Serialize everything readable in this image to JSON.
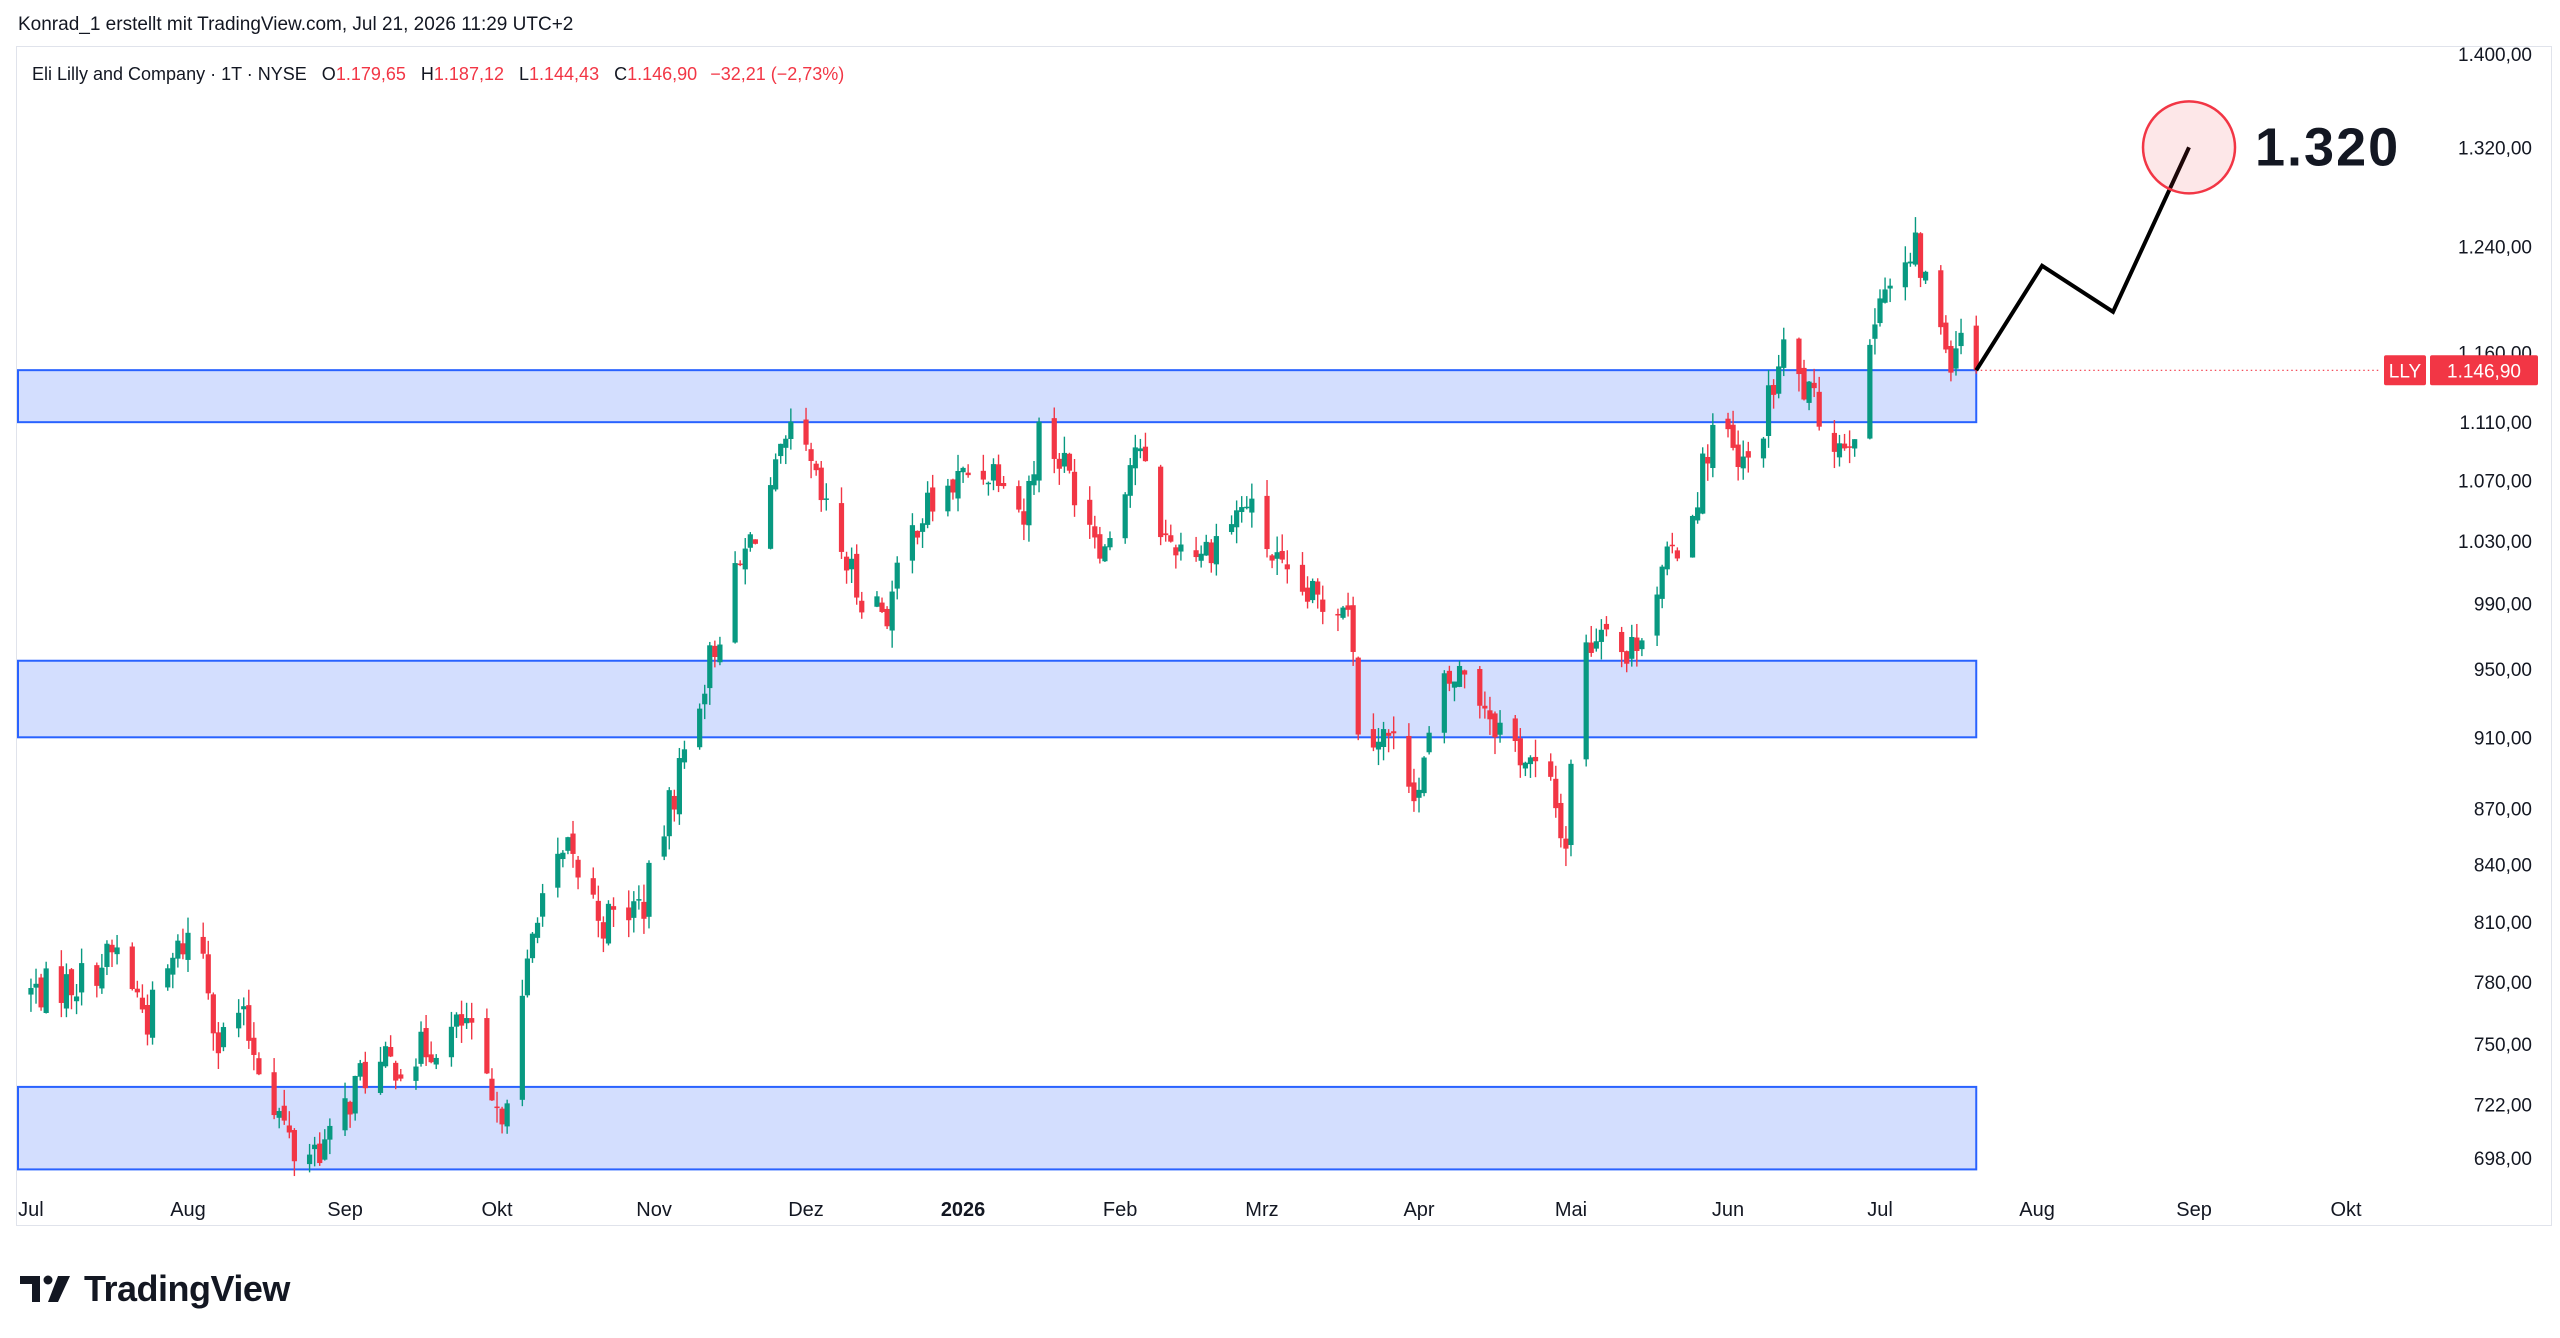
{
  "header": {
    "credit": "Konrad_1 erstellt mit TradingView.com, Jul 21, 2026 11:29 UTC+2"
  },
  "symbol": {
    "name": "Eli Lilly and Company · 1T · NYSE",
    "open_label": "O",
    "open": "1.179,65",
    "high_label": "H",
    "high": "1.187,12",
    "low_label": "L",
    "low": "1.144,43",
    "close_label": "C",
    "close": "1.146,90",
    "change": "−32,21 (−2,73%)"
  },
  "branding": {
    "logo_text": "TradingView",
    "logo_icon": "tradingview-logo-icon"
  },
  "colors": {
    "up": "#089981",
    "down": "#f23645",
    "zone_fill": "#d3defe",
    "zone_border": "#2962ff",
    "target_circle": "#f23645"
  },
  "chart_data": {
    "type": "candlestick",
    "ticker": "LLY",
    "last_price_label": "1.146,90",
    "last_price": 1146.9,
    "y_axis": {
      "scale": "log",
      "ticks": [
        {
          "value": 1400,
          "label": "1.400,00"
        },
        {
          "value": 1320,
          "label": "1.320,00"
        },
        {
          "value": 1240,
          "label": "1.240,00"
        },
        {
          "value": 1160,
          "label": "1.160,00"
        },
        {
          "value": 1110,
          "label": "1.110,00"
        },
        {
          "value": 1070,
          "label": "1.070,00"
        },
        {
          "value": 1030,
          "label": "1.030,00"
        },
        {
          "value": 990,
          "label": "990,00"
        },
        {
          "value": 950,
          "label": "950,00"
        },
        {
          "value": 910,
          "label": "910,00"
        },
        {
          "value": 870,
          "label": "870,00"
        },
        {
          "value": 840,
          "label": "840,00"
        },
        {
          "value": 810,
          "label": "810,00"
        },
        {
          "value": 780,
          "label": "780,00"
        },
        {
          "value": 750,
          "label": "750,00"
        },
        {
          "value": 722,
          "label": "722,00"
        },
        {
          "value": 698,
          "label": "698,00"
        }
      ]
    },
    "x_axis": {
      "labels": [
        {
          "date": "2025-07-01",
          "label": "Jul"
        },
        {
          "date": "2025-08-01",
          "label": "Aug"
        },
        {
          "date": "2025-09-01",
          "label": "Sep"
        },
        {
          "date": "2025-10-01",
          "label": "Okt"
        },
        {
          "date": "2025-11-01",
          "label": "Nov"
        },
        {
          "date": "2025-12-01",
          "label": "Dez"
        },
        {
          "date": "2026-01-01",
          "label": "2026",
          "bold": true
        },
        {
          "date": "2026-02-01",
          "label": "Feb"
        },
        {
          "date": "2026-03-01",
          "label": "Mrz"
        },
        {
          "date": "2026-04-01",
          "label": "Apr"
        },
        {
          "date": "2026-05-01",
          "label": "Mai"
        },
        {
          "date": "2026-06-01",
          "label": "Jun"
        },
        {
          "date": "2026-07-01",
          "label": "Jul"
        },
        {
          "date": "2026-08-01",
          "label": "Aug"
        },
        {
          "date": "2026-09-01",
          "label": "Sep"
        },
        {
          "date": "2026-10-01",
          "label": "Okt"
        }
      ]
    },
    "price_path": [
      {
        "date": "2025-07-01",
        "close": 775
      },
      {
        "date": "2025-07-10",
        "close": 780
      },
      {
        "date": "2025-07-18",
        "close": 795
      },
      {
        "date": "2025-07-24",
        "close": 762
      },
      {
        "date": "2025-07-30",
        "close": 795
      },
      {
        "date": "2025-08-03",
        "close": 810
      },
      {
        "date": "2025-08-07",
        "close": 750
      },
      {
        "date": "2025-08-11",
        "close": 765
      },
      {
        "date": "2025-08-14",
        "close": 748
      },
      {
        "date": "2025-08-22",
        "close": 700
      },
      {
        "date": "2025-08-29",
        "close": 705
      },
      {
        "date": "2025-09-04",
        "close": 735
      },
      {
        "date": "2025-09-15",
        "close": 745
      },
      {
        "date": "2025-09-25",
        "close": 760
      },
      {
        "date": "2025-10-01",
        "close": 712
      },
      {
        "date": "2025-10-05",
        "close": 750
      },
      {
        "date": "2025-10-09",
        "close": 820
      },
      {
        "date": "2025-10-15",
        "close": 845
      },
      {
        "date": "2025-10-22",
        "close": 810
      },
      {
        "date": "2025-10-30",
        "close": 820
      },
      {
        "date": "2025-11-05",
        "close": 880
      },
      {
        "date": "2025-11-10",
        "close": 935
      },
      {
        "date": "2025-11-16",
        "close": 995
      },
      {
        "date": "2025-11-24",
        "close": 1065
      },
      {
        "date": "2025-11-29",
        "close": 1105
      },
      {
        "date": "2025-12-04",
        "close": 1055
      },
      {
        "date": "2025-12-11",
        "close": 1000
      },
      {
        "date": "2025-12-17",
        "close": 985
      },
      {
        "date": "2025-12-23",
        "close": 1045
      },
      {
        "date": "2026-01-02",
        "close": 1075
      },
      {
        "date": "2026-01-09",
        "close": 1080
      },
      {
        "date": "2026-01-13",
        "close": 1045
      },
      {
        "date": "2026-01-16",
        "close": 1105
      },
      {
        "date": "2026-01-21",
        "close": 1080
      },
      {
        "date": "2026-01-29",
        "close": 1025
      },
      {
        "date": "2026-02-04",
        "close": 1095
      },
      {
        "date": "2026-02-10",
        "close": 1030
      },
      {
        "date": "2026-02-18",
        "close": 1025
      },
      {
        "date": "2026-02-26",
        "close": 1055
      },
      {
        "date": "2026-03-06",
        "close": 1000
      },
      {
        "date": "2026-03-13",
        "close": 990
      },
      {
        "date": "2026-03-18",
        "close": 995
      },
      {
        "date": "2026-03-20",
        "close": 920
      },
      {
        "date": "2026-03-26",
        "close": 910
      },
      {
        "date": "2026-04-01",
        "close": 880
      },
      {
        "date": "2026-04-05",
        "close": 935
      },
      {
        "date": "2026-04-10",
        "close": 950
      },
      {
        "date": "2026-04-16",
        "close": 920
      },
      {
        "date": "2026-04-20",
        "close": 905
      },
      {
        "date": "2026-04-27",
        "close": 880
      },
      {
        "date": "2026-04-30",
        "close": 850
      },
      {
        "date": "2026-05-01",
        "close": 900
      },
      {
        "date": "2026-05-03",
        "close": 955
      },
      {
        "date": "2026-05-08",
        "close": 985
      },
      {
        "date": "2026-05-12",
        "close": 955
      },
      {
        "date": "2026-05-18",
        "close": 1000
      },
      {
        "date": "2026-05-25",
        "close": 1050
      },
      {
        "date": "2026-05-30",
        "close": 1120
      },
      {
        "date": "2026-06-03",
        "close": 1075
      },
      {
        "date": "2026-06-06",
        "close": 1085
      },
      {
        "date": "2026-06-12",
        "close": 1160
      },
      {
        "date": "2026-06-18",
        "close": 1120
      },
      {
        "date": "2026-06-23",
        "close": 1095
      },
      {
        "date": "2026-06-28",
        "close": 1120
      },
      {
        "date": "2026-07-01",
        "close": 1215
      },
      {
        "date": "2026-07-04",
        "close": 1205
      },
      {
        "date": "2026-07-08",
        "close": 1235
      },
      {
        "date": "2026-07-12",
        "close": 1190
      },
      {
        "date": "2026-07-15",
        "close": 1160
      },
      {
        "date": "2026-07-17",
        "close": 1179
      },
      {
        "date": "2026-07-20",
        "close": 1146.9
      }
    ],
    "zones": [
      {
        "low": 1110,
        "high": 1147,
        "end": "2026-07-20"
      },
      {
        "low": 910,
        "high": 955,
        "end": "2026-07-20"
      },
      {
        "low": 693,
        "high": 730,
        "end": "2026-07-20"
      }
    ],
    "projection": {
      "points": [
        {
          "date": "2026-07-20",
          "value": 1146.9
        },
        {
          "date": "2026-08-02",
          "value": 1225
        },
        {
          "date": "2026-08-16",
          "value": 1190
        },
        {
          "date": "2026-08-31",
          "value": 1320
        }
      ],
      "target_label": "1.320",
      "target": 1320
    }
  }
}
